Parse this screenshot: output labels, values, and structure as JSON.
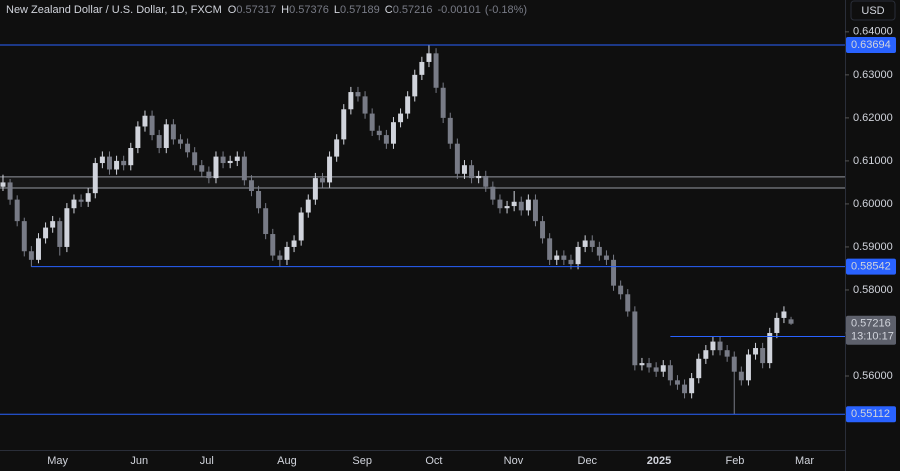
{
  "chart_data": {
    "type": "candlestick",
    "title": "New Zealand Dollar / U.S. Dollar, 1D, FXCM",
    "ohlc_keys": [
      "O",
      "H",
      "L",
      "C"
    ],
    "change": -0.00101,
    "change_pct": {
      "value": -0.18,
      "label": "(-0.18%)"
    },
    "currency": "USD",
    "countdown": "13:10:17",
    "up_color": "#d1d4dc",
    "down_color": "#787b86",
    "level_color": "#2962ff",
    "zone_color": "#9598a1",
    "ylim": [
      0.5428,
      0.6474
    ],
    "yticks": [
      {
        "value": 0.64,
        "label": "0.64000"
      },
      {
        "value": 0.63,
        "label": "0.63000"
      },
      {
        "value": 0.62,
        "label": "0.62000"
      },
      {
        "value": 0.61,
        "label": "0.61000"
      },
      {
        "value": 0.6,
        "label": "0.60000"
      },
      {
        "value": 0.59,
        "label": "0.59000"
      },
      {
        "value": 0.58,
        "label": "0.58000"
      },
      {
        "value": 0.57,
        "label": "0.57000"
      },
      {
        "value": 0.56,
        "label": "0.56000"
      }
    ],
    "xlim": [
      -0.42,
      118.6
    ],
    "xticks": [
      {
        "value": 7.7,
        "label": "May"
      },
      {
        "value": 19.2,
        "label": "Jun"
      },
      {
        "value": 28.7,
        "label": "Jul"
      },
      {
        "value": 40,
        "label": "Aug"
      },
      {
        "value": 50.6,
        "label": "Sep"
      },
      {
        "value": 60.7,
        "label": "Oct"
      },
      {
        "value": 71.9,
        "label": "Nov"
      },
      {
        "value": 82.3,
        "label": "Dec"
      },
      {
        "value": 92.4,
        "label": "2025"
      },
      {
        "value": 103.1,
        "label": "Feb"
      },
      {
        "value": 112.9,
        "label": "Mar"
      }
    ],
    "levels": [
      {
        "value": 0.63694,
        "x_start": -0.42
      },
      {
        "value": 0.58542,
        "x_start": 4
      },
      {
        "value": 0.56918,
        "x_start": 94
      },
      {
        "value": 0.55112,
        "x_start": -0.42
      }
    ],
    "zone": [
      0.6037,
      0.6063
    ],
    "ohlc": [
      [
        0.604,
        0.6068,
        0.603,
        0.605
      ],
      [
        0.605,
        0.6058,
        0.5998,
        0.601
      ],
      [
        0.601,
        0.602,
        0.5948,
        0.596
      ],
      [
        0.596,
        0.5968,
        0.5878,
        0.589
      ],
      [
        0.589,
        0.5902,
        0.5854,
        0.587
      ],
      [
        0.587,
        0.5932,
        0.5862,
        0.592
      ],
      [
        0.592,
        0.5957,
        0.5908,
        0.5945
      ],
      [
        0.5945,
        0.5972,
        0.5933,
        0.596
      ],
      [
        0.596,
        0.5968,
        0.588,
        0.59
      ],
      [
        0.59,
        0.6002,
        0.5888,
        0.599
      ],
      [
        0.599,
        0.6022,
        0.5978,
        0.601
      ],
      [
        0.601,
        0.6022,
        0.5993,
        0.6005
      ],
      [
        0.6005,
        0.6037,
        0.5993,
        0.6025
      ],
      [
        0.6025,
        0.6107,
        0.6013,
        0.6095
      ],
      [
        0.6095,
        0.6122,
        0.6083,
        0.611
      ],
      [
        0.611,
        0.6122,
        0.6068,
        0.608
      ],
      [
        0.608,
        0.6112,
        0.6068,
        0.61
      ],
      [
        0.61,
        0.6112,
        0.6078,
        0.609
      ],
      [
        0.609,
        0.6142,
        0.6078,
        0.613
      ],
      [
        0.613,
        0.6192,
        0.6118,
        0.618
      ],
      [
        0.618,
        0.6217,
        0.6168,
        0.6205
      ],
      [
        0.6205,
        0.6217,
        0.6148,
        0.616
      ],
      [
        0.616,
        0.6172,
        0.6118,
        0.613
      ],
      [
        0.613,
        0.6197,
        0.6118,
        0.6185
      ],
      [
        0.6185,
        0.6197,
        0.6138,
        0.615
      ],
      [
        0.615,
        0.6162,
        0.6128,
        0.614
      ],
      [
        0.614,
        0.6152,
        0.6108,
        0.612
      ],
      [
        0.612,
        0.6132,
        0.6078,
        0.609
      ],
      [
        0.609,
        0.6102,
        0.6063,
        0.6075
      ],
      [
        0.6075,
        0.6087,
        0.6048,
        0.606
      ],
      [
        0.606,
        0.6122,
        0.6048,
        0.611
      ],
      [
        0.611,
        0.6122,
        0.6083,
        0.6095
      ],
      [
        0.6095,
        0.6112,
        0.6083,
        0.61
      ],
      [
        0.61,
        0.6122,
        0.6088,
        0.611
      ],
      [
        0.611,
        0.6122,
        0.6043,
        0.6055
      ],
      [
        0.6055,
        0.6067,
        0.6018,
        0.603
      ],
      [
        0.603,
        0.6042,
        0.5978,
        0.599
      ],
      [
        0.599,
        0.6002,
        0.5918,
        0.593
      ],
      [
        0.593,
        0.5942,
        0.5868,
        0.588
      ],
      [
        0.588,
        0.5892,
        0.5854,
        0.587
      ],
      [
        0.587,
        0.5912,
        0.5858,
        0.59
      ],
      [
        0.59,
        0.5927,
        0.5888,
        0.5915
      ],
      [
        0.5915,
        0.5992,
        0.5903,
        0.598
      ],
      [
        0.598,
        0.6022,
        0.5968,
        0.601
      ],
      [
        0.601,
        0.6072,
        0.5998,
        0.606
      ],
      [
        0.606,
        0.6072,
        0.6038,
        0.605
      ],
      [
        0.605,
        0.6122,
        0.6038,
        0.611
      ],
      [
        0.611,
        0.6162,
        0.6098,
        0.615
      ],
      [
        0.615,
        0.6232,
        0.6138,
        0.622
      ],
      [
        0.622,
        0.6272,
        0.6208,
        0.626
      ],
      [
        0.626,
        0.6272,
        0.6238,
        0.625
      ],
      [
        0.625,
        0.6262,
        0.6198,
        0.621
      ],
      [
        0.621,
        0.6222,
        0.6158,
        0.617
      ],
      [
        0.617,
        0.6182,
        0.6148,
        0.616
      ],
      [
        0.616,
        0.6172,
        0.6128,
        0.614
      ],
      [
        0.614,
        0.6202,
        0.6128,
        0.619
      ],
      [
        0.619,
        0.6222,
        0.6178,
        0.621
      ],
      [
        0.621,
        0.6262,
        0.6198,
        0.625
      ],
      [
        0.625,
        0.6312,
        0.6238,
        0.63
      ],
      [
        0.63,
        0.6342,
        0.6288,
        0.633
      ],
      [
        0.633,
        0.637,
        0.6318,
        0.635
      ],
      [
        0.635,
        0.6362,
        0.6258,
        0.627
      ],
      [
        0.627,
        0.6282,
        0.6188,
        0.62
      ],
      [
        0.62,
        0.6212,
        0.6128,
        0.614
      ],
      [
        0.614,
        0.6152,
        0.6058,
        0.607
      ],
      [
        0.607,
        0.6102,
        0.6058,
        0.609
      ],
      [
        0.609,
        0.6102,
        0.6048,
        0.606
      ],
      [
        0.606,
        0.6077,
        0.6048,
        0.6065
      ],
      [
        0.6065,
        0.6077,
        0.6028,
        0.604
      ],
      [
        0.604,
        0.6052,
        0.5998,
        0.601
      ],
      [
        0.601,
        0.6022,
        0.5978,
        0.599
      ],
      [
        0.599,
        0.6007,
        0.5978,
        0.5995
      ],
      [
        0.5995,
        0.603,
        0.5983,
        0.6005
      ],
      [
        0.6005,
        0.6017,
        0.5973,
        0.5985
      ],
      [
        0.5985,
        0.6022,
        0.5973,
        0.601
      ],
      [
        0.601,
        0.6022,
        0.5948,
        0.596
      ],
      [
        0.596,
        0.5972,
        0.5908,
        0.592
      ],
      [
        0.592,
        0.5932,
        0.5858,
        0.587
      ],
      [
        0.587,
        0.5892,
        0.5858,
        0.588
      ],
      [
        0.588,
        0.5892,
        0.5858,
        0.587
      ],
      [
        0.587,
        0.5882,
        0.5848,
        0.586
      ],
      [
        0.586,
        0.5912,
        0.5848,
        0.59
      ],
      [
        0.59,
        0.5927,
        0.5888,
        0.5915
      ],
      [
        0.5915,
        0.5927,
        0.5888,
        0.59
      ],
      [
        0.59,
        0.5912,
        0.5868,
        0.588
      ],
      [
        0.588,
        0.5892,
        0.5858,
        0.587
      ],
      [
        0.587,
        0.5882,
        0.5798,
        0.581
      ],
      [
        0.581,
        0.5822,
        0.5778,
        0.579
      ],
      [
        0.579,
        0.5802,
        0.5738,
        0.575
      ],
      [
        0.575,
        0.5762,
        0.5613,
        0.5625
      ],
      [
        0.5625,
        0.5642,
        0.5613,
        0.563
      ],
      [
        0.563,
        0.5642,
        0.5608,
        0.562
      ],
      [
        0.562,
        0.5632,
        0.5598,
        0.561
      ],
      [
        0.561,
        0.5637,
        0.5598,
        0.5625
      ],
      [
        0.5625,
        0.5637,
        0.5578,
        0.559
      ],
      [
        0.559,
        0.5602,
        0.5568,
        0.558
      ],
      [
        0.558,
        0.5592,
        0.5548,
        0.556
      ],
      [
        0.556,
        0.5607,
        0.5548,
        0.5595
      ],
      [
        0.5595,
        0.5652,
        0.5583,
        0.564
      ],
      [
        0.564,
        0.5672,
        0.5628,
        0.566
      ],
      [
        0.566,
        0.5692,
        0.5648,
        0.568
      ],
      [
        0.568,
        0.5692,
        0.5648,
        0.566
      ],
      [
        0.566,
        0.5672,
        0.5633,
        0.5645
      ],
      [
        0.5645,
        0.5657,
        0.5511,
        0.561
      ],
      [
        0.561,
        0.5622,
        0.5578,
        0.559
      ],
      [
        0.559,
        0.5662,
        0.5578,
        0.565
      ],
      [
        0.565,
        0.5677,
        0.5638,
        0.5665
      ],
      [
        0.5665,
        0.5677,
        0.5618,
        0.563
      ],
      [
        0.563,
        0.5712,
        0.5618,
        0.57
      ],
      [
        0.57,
        0.5747,
        0.5688,
        0.5735
      ],
      [
        0.5735,
        0.5762,
        0.5723,
        0.575
      ],
      [
        0.57317,
        0.57376,
        0.57189,
        0.57216
      ]
    ]
  }
}
